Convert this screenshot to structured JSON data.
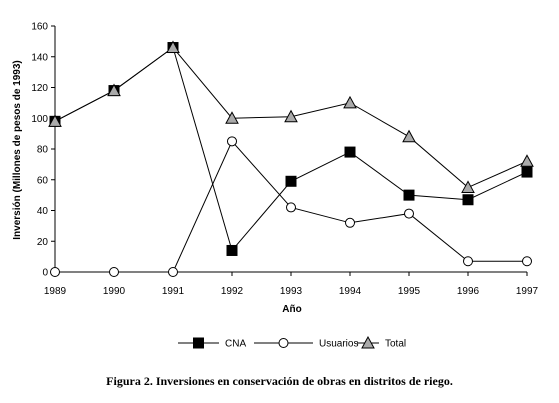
{
  "caption": "Figura 2. Inversiones en conservación de obras en distritos de riego.",
  "chart_data": {
    "type": "line",
    "title": "",
    "xlabel": "Año",
    "ylabel": "Inversión (Millones de pesos de 1993)",
    "x": [
      "1989",
      "1990",
      "1991",
      "1992",
      "1993",
      "1994",
      "1995",
      "1996",
      "1997"
    ],
    "ylim": [
      0,
      160
    ],
    "yticks": [
      0,
      20,
      40,
      60,
      80,
      100,
      120,
      140,
      160
    ],
    "grid": false,
    "legend_position": "bottom",
    "series": [
      {
        "name": "CNA",
        "marker": "square",
        "color": "#000000",
        "values": [
          98,
          118,
          146,
          14,
          59,
          78,
          50,
          47,
          65
        ]
      },
      {
        "name": "Usuarios",
        "marker": "circle",
        "color": "#ffffff",
        "values": [
          0,
          0,
          0,
          85,
          42,
          32,
          38,
          7,
          7
        ]
      },
      {
        "name": "Total",
        "marker": "triangle",
        "color": "#aaaaaa",
        "values": [
          98,
          118,
          146,
          100,
          101,
          110,
          88,
          55,
          72
        ]
      }
    ]
  }
}
